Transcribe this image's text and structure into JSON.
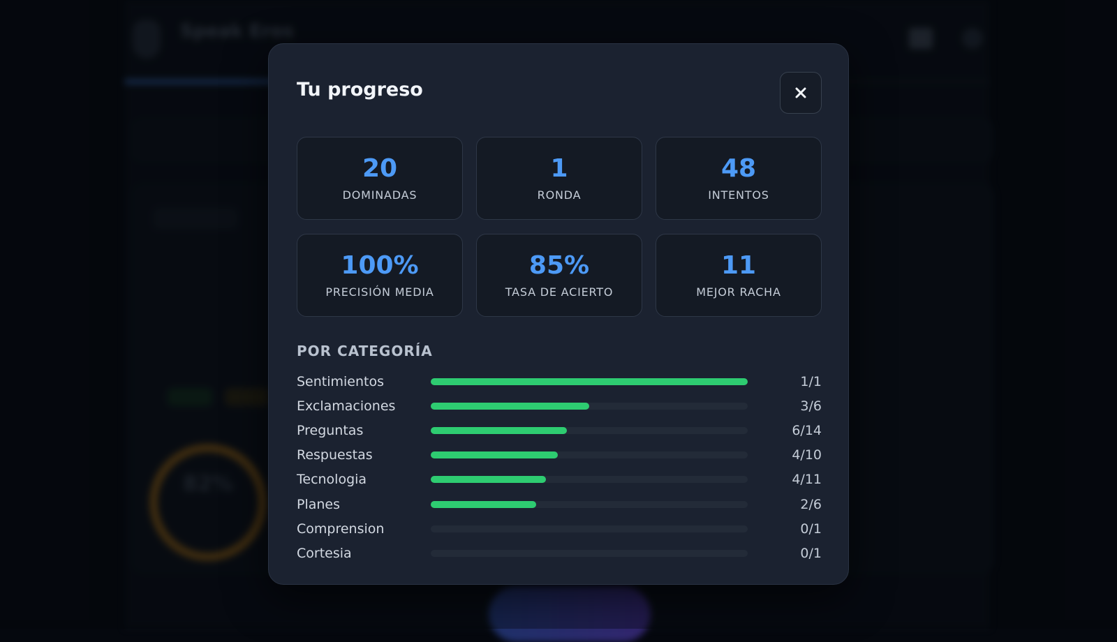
{
  "background": {
    "brand": "Speak Eros",
    "ring_value": "82%"
  },
  "modal": {
    "title": "Tu progreso",
    "close_icon": "close-icon",
    "stats": [
      {
        "value": "20",
        "label": "DOMINADAS"
      },
      {
        "value": "1",
        "label": "RONDA"
      },
      {
        "value": "48",
        "label": "INTENTOS"
      },
      {
        "value": "100%",
        "label": "PRECISIÓN MEDIA"
      },
      {
        "value": "85%",
        "label": "TASA DE ACIERTO"
      },
      {
        "value": "11",
        "label": "MEJOR RACHA"
      }
    ],
    "category_heading": "POR CATEGORÍA",
    "categories": [
      {
        "name": "Sentimientos",
        "count": "1/1",
        "done": 1,
        "total": 1
      },
      {
        "name": "Exclamaciones",
        "count": "3/6",
        "done": 3,
        "total": 6
      },
      {
        "name": "Preguntas",
        "count": "6/14",
        "done": 6,
        "total": 14
      },
      {
        "name": "Respuestas",
        "count": "4/10",
        "done": 4,
        "total": 10
      },
      {
        "name": "Tecnologia",
        "count": "4/11",
        "done": 4,
        "total": 11
      },
      {
        "name": "Planes",
        "count": "2/6",
        "done": 2,
        "total": 6
      },
      {
        "name": "Comprension",
        "count": "0/1",
        "done": 0,
        "total": 1
      },
      {
        "name": "Cortesia",
        "count": "0/1",
        "done": 0,
        "total": 1
      }
    ]
  },
  "colors": {
    "accent_blue": "#4d9af6",
    "progress_green": "#2ecc71"
  }
}
